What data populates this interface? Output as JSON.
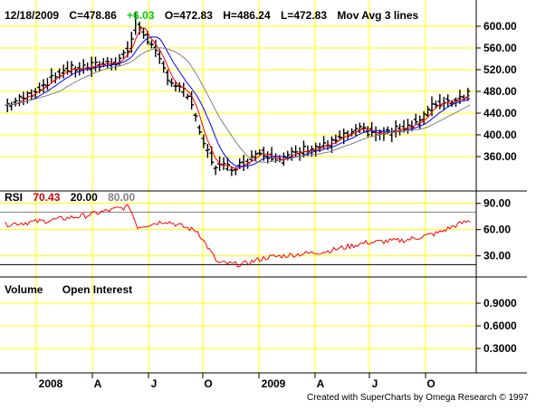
{
  "header": {
    "date": "12/18/2009",
    "close": "C=478.86",
    "change": "+6.03",
    "open": "O=472.83",
    "high": "H=486.24",
    "low": "L=472.83",
    "indicator": "Mov Avg 3 lines"
  },
  "rsi_header": {
    "label": "RSI",
    "value": "70.43",
    "low_band": "20.00",
    "high_band": "80.00"
  },
  "volume_header": {
    "volume": "Volume",
    "open_interest": "Open Interest"
  },
  "credit": "Created with SuperCharts by Omega Research © 1997",
  "colors": {
    "grid": "#ffff00",
    "up": "#00cc00",
    "rsi": "#ff0000",
    "band": "#808080",
    "ma_fast": "#ff0000",
    "ma_mid": "#0000ff",
    "ma_slow": "#808080",
    "bars": "#000000"
  },
  "chart_data": [
    {
      "type": "line",
      "panel": "price",
      "x_tick_labels": [
        "2008",
        "A",
        "J",
        "O",
        "2009",
        "A",
        "J",
        "O"
      ],
      "y_tick_labels": [
        "600.00",
        "560.00",
        "520.00",
        "480.00",
        "440.00",
        "400.00",
        "360.00"
      ],
      "ylim": [
        305,
        625
      ],
      "grid": true,
      "bar_type": "OHLC weekly",
      "series": [
        {
          "name": "Price",
          "x": [
            2008.0,
            2008.25,
            2008.5,
            2008.75,
            2009.0,
            2009.25,
            2009.5,
            2009.75,
            2009.97
          ],
          "values": [
            455,
            520,
            560,
            400,
            365,
            380,
            410,
            460,
            479
          ]
        },
        {
          "name": "Mov Avg 3 lines",
          "values": []
        }
      ]
    },
    {
      "type": "line",
      "panel": "rsi",
      "y_tick_labels": [
        "90.00",
        "60.00",
        "30.00"
      ],
      "ylim": [
        10,
        100
      ],
      "bands": [
        20,
        80
      ],
      "grid": true
    },
    {
      "type": "bar",
      "panel": "volume",
      "y_tick_labels": [
        "0.9000",
        "0.6000",
        "0.3000"
      ],
      "ylim": [
        0,
        1.2
      ],
      "grid": true
    }
  ]
}
